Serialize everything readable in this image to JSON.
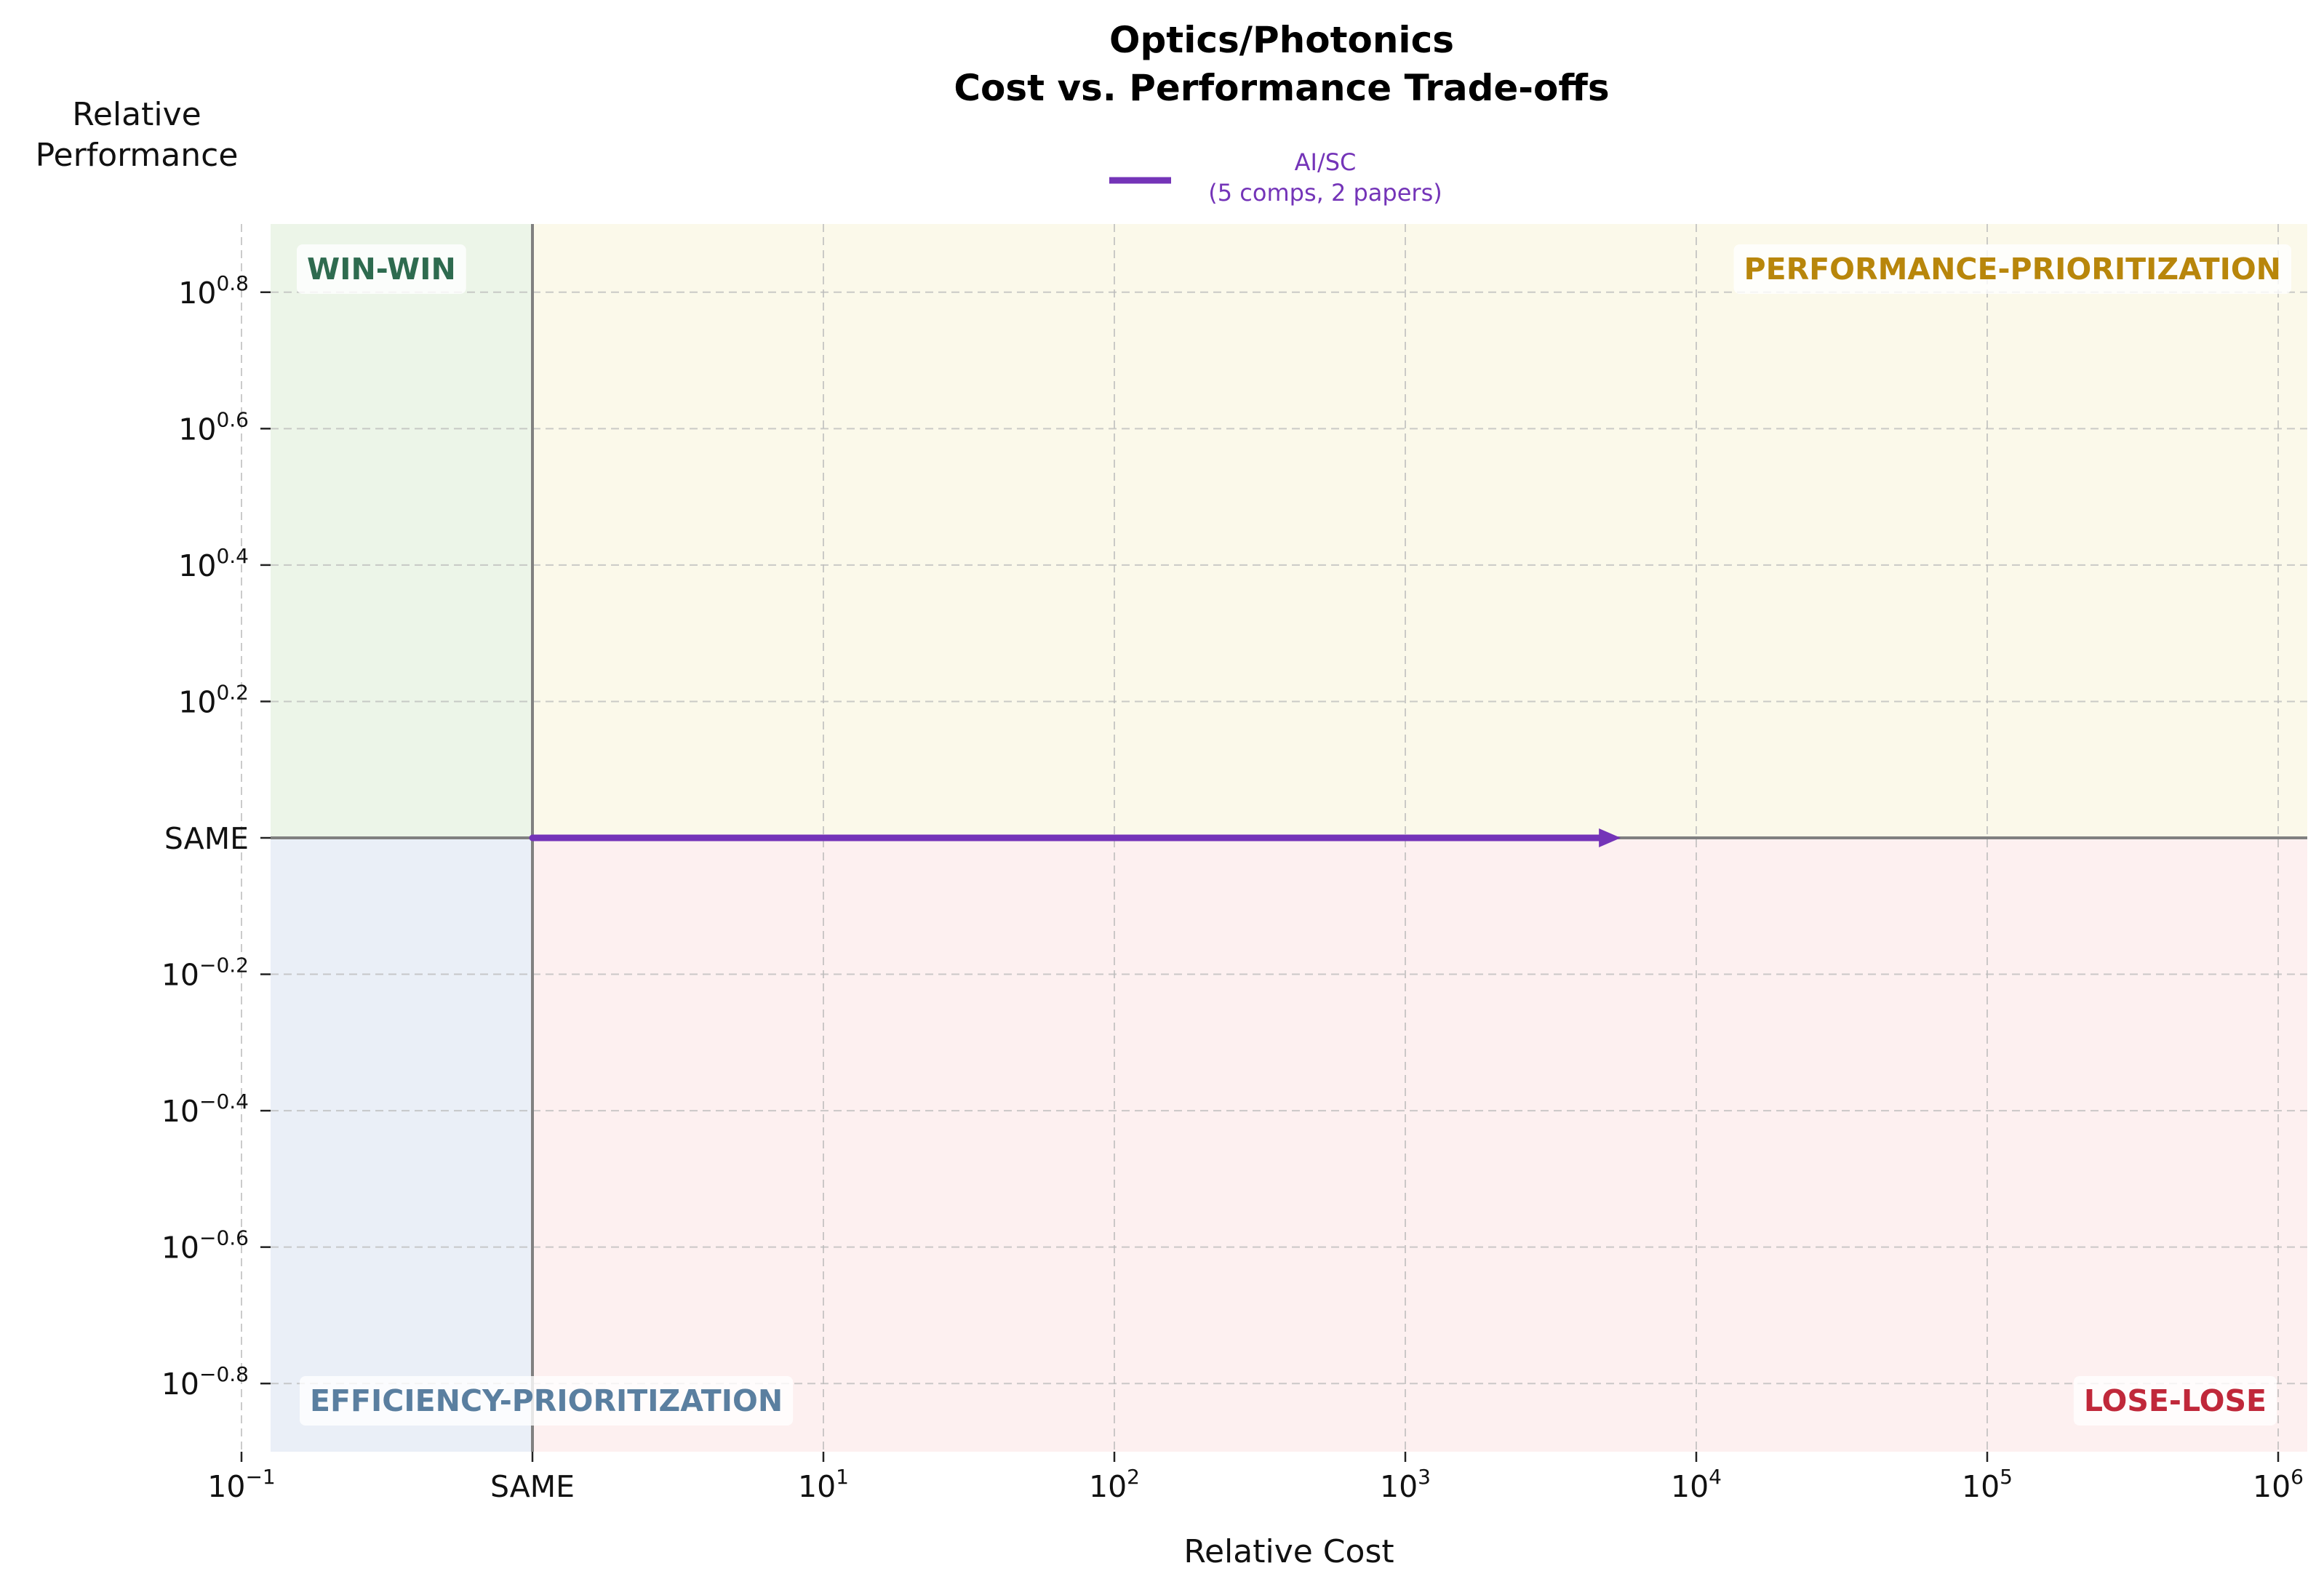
{
  "chart_data": {
    "type": "line",
    "title": [
      "Optics/Photonics",
      "Cost vs. Performance Trade-offs"
    ],
    "xlabel": "Relative Cost",
    "ylabel": [
      "Relative",
      "Performance"
    ],
    "x_scale": "log",
    "y_scale": "log",
    "xlim_log10": [
      -0.9,
      6.1
    ],
    "ylim_log10": [
      -0.9,
      0.9
    ],
    "x_ticks": [
      {
        "log10": -1,
        "base": "10",
        "exp": "−1"
      },
      {
        "log10": 0,
        "label": "SAME"
      },
      {
        "log10": 1,
        "base": "10",
        "exp": "1"
      },
      {
        "log10": 2,
        "base": "10",
        "exp": "2"
      },
      {
        "log10": 3,
        "base": "10",
        "exp": "3"
      },
      {
        "log10": 4,
        "base": "10",
        "exp": "4"
      },
      {
        "log10": 5,
        "base": "10",
        "exp": "5"
      },
      {
        "log10": 6,
        "base": "10",
        "exp": "6"
      }
    ],
    "y_ticks": [
      {
        "log10": 0.8,
        "base": "10",
        "exp": "0.8"
      },
      {
        "log10": 0.6,
        "base": "10",
        "exp": "0.6"
      },
      {
        "log10": 0.4,
        "base": "10",
        "exp": "0.4"
      },
      {
        "log10": 0.2,
        "base": "10",
        "exp": "0.2"
      },
      {
        "log10": 0,
        "label": "SAME"
      },
      {
        "log10": -0.2,
        "base": "10",
        "exp": "−0.2"
      },
      {
        "log10": -0.4,
        "base": "10",
        "exp": "−0.4"
      },
      {
        "log10": -0.6,
        "base": "10",
        "exp": "−0.6"
      },
      {
        "log10": -0.8,
        "base": "10",
        "exp": "−0.8"
      }
    ],
    "grid": true,
    "quadrants": [
      {
        "name": "WIN-WIN",
        "region": "top-left",
        "color": "#2e6b4f",
        "fill": "#ecf5e8"
      },
      {
        "name": "PERFORMANCE-PRIORITIZATION",
        "region": "top-right",
        "color": "#b8860b",
        "fill": "#fbf9ea"
      },
      {
        "name": "EFFICIENCY-PRIORITIZATION",
        "region": "bottom-left",
        "color": "#5a7fa0",
        "fill": "#eaeff7"
      },
      {
        "name": "LOSE-LOSE",
        "region": "bottom-right",
        "color": "#c0283a",
        "fill": "#fdf0f0"
      }
    ],
    "series": [
      {
        "name": "AI/SC",
        "detail": "(5 comps, 2 papers)",
        "color": "#7434b8",
        "from": {
          "x": 1,
          "y": 1
        },
        "to": {
          "x": 5500,
          "y": 1
        }
      }
    ],
    "legend_position": "top-center"
  }
}
